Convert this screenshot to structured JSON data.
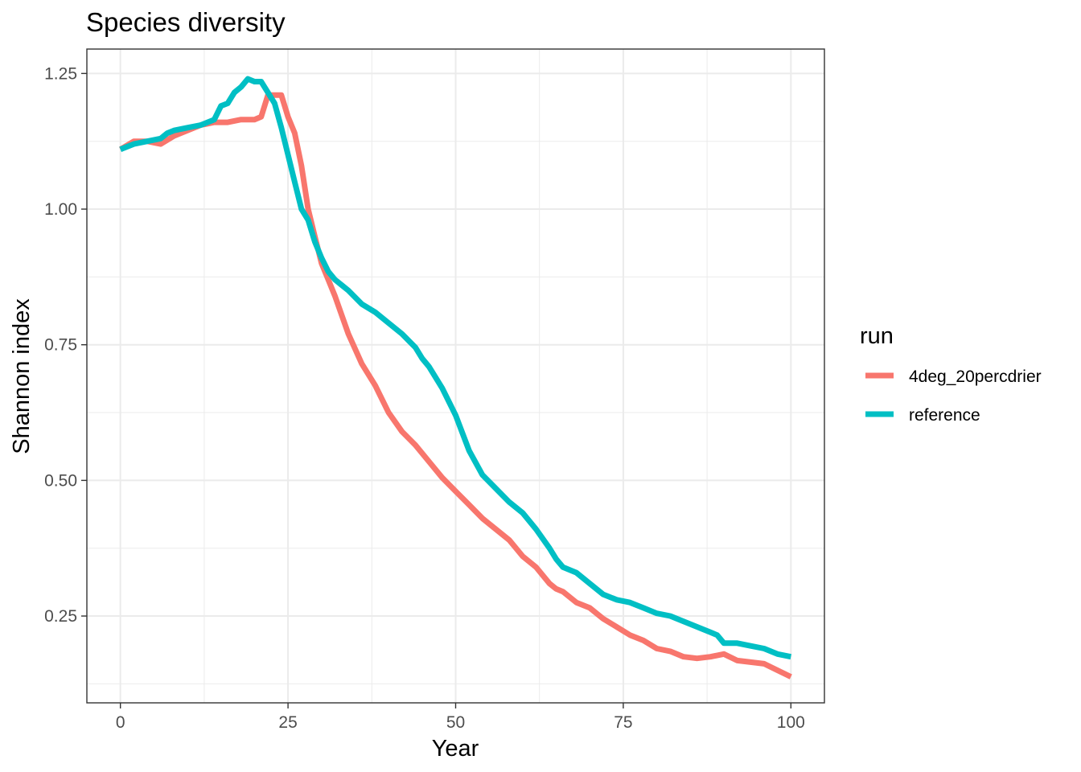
{
  "chart_data": {
    "type": "line",
    "title": "Species diversity",
    "xlabel": "Year",
    "ylabel": "Shannon index",
    "xlim": [
      -5,
      105
    ],
    "ylim": [
      0.09,
      1.295
    ],
    "x_ticks": [
      0,
      25,
      50,
      75,
      100
    ],
    "x_tick_labels": [
      "0",
      "25",
      "50",
      "75",
      "100"
    ],
    "y_ticks": [
      0.25,
      0.5,
      0.75,
      1.0,
      1.25
    ],
    "y_tick_labels": [
      "0.25",
      "0.50",
      "0.75",
      "1.00",
      "1.25"
    ],
    "grid": true,
    "legend": {
      "title": "run",
      "position": "right"
    },
    "series": [
      {
        "name": "4deg_20percdrier",
        "color": "#F8766D",
        "x": [
          0,
          2,
          4,
          6,
          8,
          10,
          12,
          14,
          16,
          18,
          20,
          21,
          22,
          23,
          24,
          25,
          26,
          27,
          28,
          29,
          30,
          31,
          32,
          34,
          36,
          38,
          40,
          42,
          44,
          46,
          48,
          50,
          52,
          54,
          56,
          58,
          60,
          62,
          64,
          65,
          66,
          68,
          70,
          72,
          74,
          76,
          78,
          80,
          82,
          84,
          86,
          88,
          90,
          92,
          94,
          96,
          98,
          100
        ],
        "y": [
          1.11,
          1.125,
          1.125,
          1.12,
          1.135,
          1.145,
          1.155,
          1.16,
          1.16,
          1.165,
          1.165,
          1.17,
          1.21,
          1.21,
          1.21,
          1.17,
          1.14,
          1.08,
          1.0,
          0.95,
          0.9,
          0.87,
          0.84,
          0.77,
          0.715,
          0.675,
          0.625,
          0.59,
          0.565,
          0.535,
          0.505,
          0.48,
          0.455,
          0.43,
          0.41,
          0.39,
          0.36,
          0.34,
          0.31,
          0.3,
          0.295,
          0.275,
          0.265,
          0.245,
          0.23,
          0.215,
          0.205,
          0.19,
          0.185,
          0.175,
          0.172,
          0.175,
          0.18,
          0.168,
          0.165,
          0.162,
          0.15,
          0.138
        ]
      },
      {
        "name": "reference",
        "color": "#00BFC4",
        "x": [
          0,
          2,
          4,
          6,
          7,
          8,
          10,
          12,
          14,
          15,
          16,
          17,
          18,
          19,
          20,
          21,
          22,
          23,
          24,
          25,
          26,
          27,
          28,
          29,
          30,
          31,
          32,
          33,
          34,
          36,
          38,
          40,
          42,
          44,
          45,
          46,
          47,
          48,
          50,
          52,
          54,
          56,
          58,
          60,
          62,
          64,
          65,
          66,
          68,
          70,
          72,
          74,
          76,
          78,
          80,
          82,
          84,
          86,
          87,
          88,
          89,
          90,
          92,
          94,
          96,
          98,
          100
        ],
        "y": [
          1.11,
          1.12,
          1.125,
          1.13,
          1.14,
          1.145,
          1.15,
          1.155,
          1.165,
          1.19,
          1.195,
          1.215,
          1.225,
          1.24,
          1.235,
          1.235,
          1.215,
          1.195,
          1.15,
          1.1,
          1.05,
          1.0,
          0.98,
          0.94,
          0.91,
          0.885,
          0.87,
          0.86,
          0.85,
          0.825,
          0.81,
          0.79,
          0.77,
          0.745,
          0.725,
          0.71,
          0.69,
          0.67,
          0.62,
          0.555,
          0.51,
          0.485,
          0.46,
          0.44,
          0.41,
          0.375,
          0.355,
          0.34,
          0.33,
          0.31,
          0.29,
          0.28,
          0.275,
          0.265,
          0.255,
          0.25,
          0.24,
          0.23,
          0.225,
          0.22,
          0.215,
          0.2,
          0.2,
          0.195,
          0.19,
          0.18,
          0.175
        ]
      }
    ]
  }
}
